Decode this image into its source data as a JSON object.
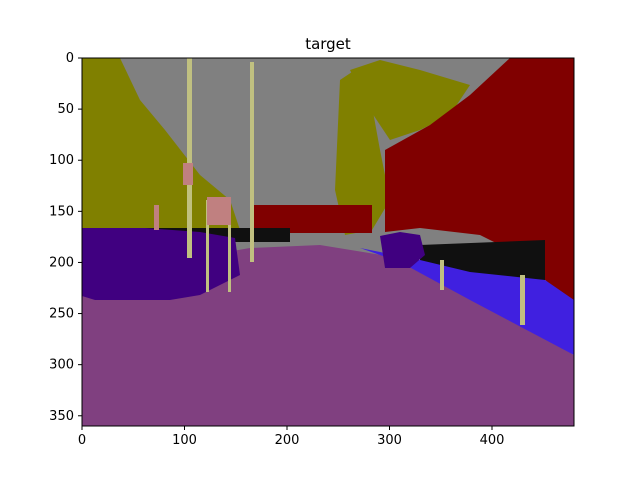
{
  "chart_data": {
    "type": "heatmap",
    "title": "target",
    "xlabel": "",
    "ylabel": "",
    "xlim": [
      0,
      480
    ],
    "ylim": [
      360,
      0
    ],
    "x_ticks": [
      0,
      100,
      200,
      300,
      400
    ],
    "y_ticks": [
      0,
      50,
      100,
      150,
      200,
      250,
      300,
      350
    ],
    "grid": false,
    "colors": {
      "sky": "#808080",
      "vegetation": "#808000",
      "building": "#800000",
      "car": "#400080",
      "road": "#804080",
      "sidewalk": "#4020e0",
      "pole": "#c0c080",
      "sign": "#c08080",
      "dark": "#101010"
    }
  }
}
